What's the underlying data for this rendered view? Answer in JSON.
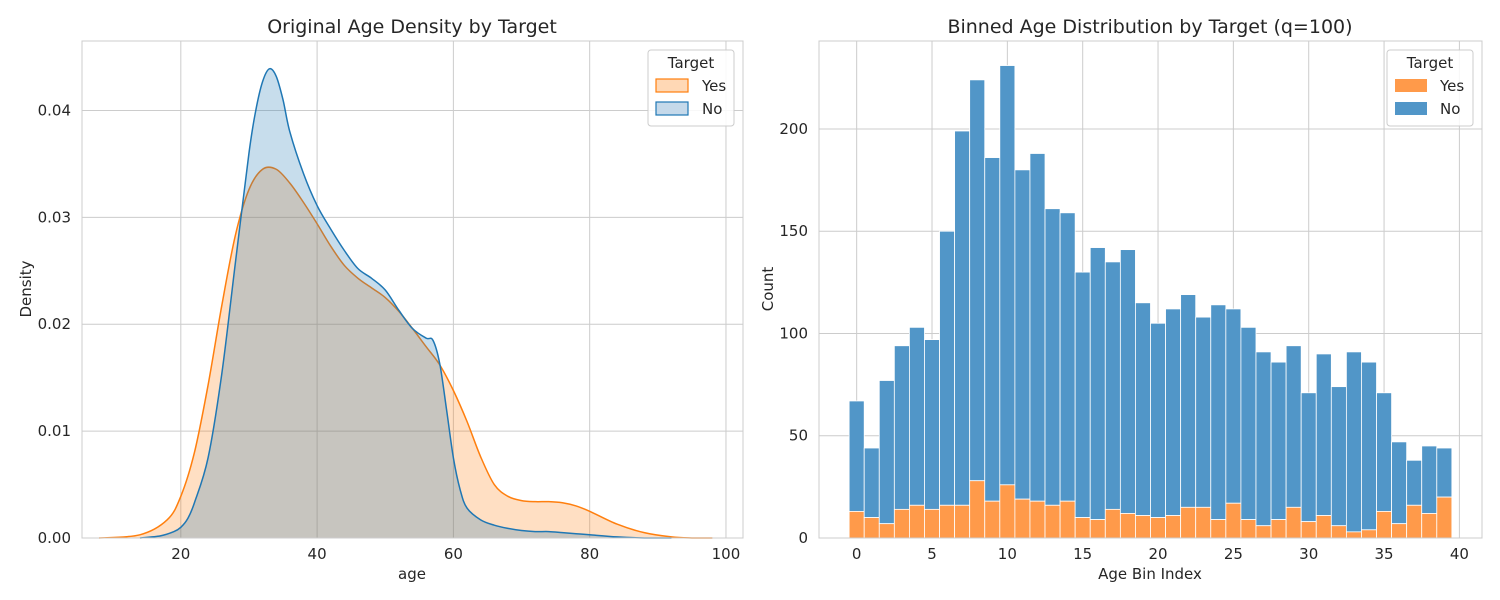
{
  "chart_data": [
    {
      "type": "area",
      "title": "Original Age Density by Target",
      "xlabel": "age",
      "ylabel": "Density",
      "xlim": [
        5.5,
        102.5
      ],
      "ylim": [
        0,
        0.0465
      ],
      "xticks": [
        20,
        40,
        60,
        80,
        100
      ],
      "yticks": [
        0.0,
        0.01,
        0.02,
        0.03,
        0.04
      ],
      "ytick_labels": [
        "0.00",
        "0.01",
        "0.02",
        "0.03",
        "0.04"
      ],
      "grid": true,
      "legend": {
        "title": "Target",
        "position": "top-right"
      },
      "series": [
        {
          "name": "Yes",
          "color": "#ff7f0e",
          "fill": "#ffd8b5",
          "x": [
            8,
            14,
            18,
            20,
            22,
            24,
            26,
            28,
            30,
            32,
            34,
            36,
            38,
            40,
            42,
            44,
            46,
            48,
            50,
            52,
            54,
            56,
            58,
            60,
            62,
            64,
            66,
            68,
            70,
            72,
            74,
            76,
            78,
            80,
            84,
            88,
            92,
            95,
            98
          ],
          "values": [
            0.0,
            0.0003,
            0.0017,
            0.0039,
            0.008,
            0.0143,
            0.0217,
            0.0283,
            0.0326,
            0.0345,
            0.0345,
            0.0332,
            0.0314,
            0.0294,
            0.0273,
            0.0255,
            0.0243,
            0.0234,
            0.0225,
            0.0212,
            0.0196,
            0.0179,
            0.0162,
            0.0138,
            0.0109,
            0.0076,
            0.005,
            0.0039,
            0.0035,
            0.0034,
            0.0034,
            0.0033,
            0.003,
            0.0025,
            0.0013,
            0.0005,
            0.0001,
            0.0,
            0.0
          ]
        },
        {
          "name": "No",
          "color": "#1f77b4",
          "fill": "#c5d9ea",
          "x": [
            14,
            17,
            19,
            20,
            21,
            22,
            24,
            26,
            28,
            30,
            31,
            32,
            33,
            34,
            35,
            36,
            38,
            40,
            42,
            44,
            46,
            48,
            50,
            52,
            54,
            56,
            57,
            58,
            59,
            60,
            61,
            62,
            64,
            66,
            68,
            70,
            72,
            74,
            76,
            78,
            80,
            84,
            88,
            92
          ],
          "values": [
            0.0,
            0.0002,
            0.0006,
            0.001,
            0.0018,
            0.0033,
            0.0075,
            0.0153,
            0.0257,
            0.036,
            0.04,
            0.0427,
            0.0439,
            0.0432,
            0.041,
            0.038,
            0.0341,
            0.0311,
            0.0289,
            0.0269,
            0.0252,
            0.0243,
            0.0232,
            0.0213,
            0.0196,
            0.0187,
            0.0185,
            0.0163,
            0.012,
            0.0075,
            0.0045,
            0.0028,
            0.0017,
            0.0012,
            0.0009,
            0.0007,
            0.0006,
            0.0006,
            0.0005,
            0.0004,
            0.0003,
            0.0001,
            0.0,
            0.0
          ]
        }
      ]
    },
    {
      "type": "bar",
      "stacked": true,
      "title": "Binned Age Distribution by Target (q=100)",
      "xlabel": "Age Bin Index",
      "ylabel": "Count",
      "xlim": [
        -2.5,
        41.5
      ],
      "ylim": [
        0,
        243
      ],
      "xticks": [
        0,
        5,
        10,
        15,
        20,
        25,
        30,
        35,
        40
      ],
      "yticks": [
        0,
        50,
        100,
        150,
        200
      ],
      "grid": true,
      "legend": {
        "title": "Target",
        "position": "top-right"
      },
      "categories": [
        0,
        1,
        2,
        3,
        4,
        5,
        6,
        7,
        8,
        9,
        10,
        11,
        12,
        13,
        14,
        15,
        16,
        17,
        18,
        19,
        20,
        21,
        22,
        23,
        24,
        25,
        26,
        27,
        28,
        29,
        30,
        31,
        32,
        33,
        34,
        35,
        36,
        37,
        38,
        39
      ],
      "series": [
        {
          "name": "Yes",
          "color": "#ff9a4a",
          "values": [
            13,
            10,
            7,
            14,
            16,
            14,
            16,
            16,
            28,
            18,
            26,
            19,
            18,
            16,
            18,
            10,
            9,
            14,
            12,
            11,
            10,
            11,
            15,
            15,
            9,
            17,
            9,
            6,
            9,
            15,
            8,
            11,
            6,
            3,
            4,
            13,
            7,
            16,
            12,
            20
          ]
        },
        {
          "name": "No",
          "color": "#5196c8",
          "values": [
            54,
            34,
            70,
            80,
            87,
            83,
            134,
            183,
            196,
            168,
            205,
            161,
            170,
            145,
            141,
            120,
            133,
            121,
            129,
            104,
            95,
            101,
            104,
            93,
            105,
            95,
            94,
            85,
            77,
            79,
            63,
            79,
            68,
            88,
            82,
            58,
            40,
            22,
            33,
            24
          ]
        }
      ]
    }
  ]
}
